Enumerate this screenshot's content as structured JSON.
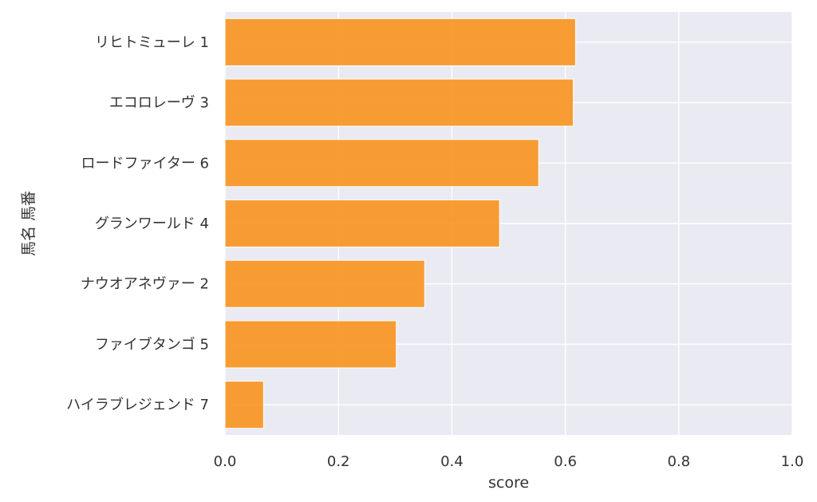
{
  "chart_data": {
    "type": "bar",
    "orientation": "horizontal",
    "categories": [
      "リヒトミューレ 1",
      "エコロレーヴ 3",
      "ロードファイター 6",
      "グランワールド 4",
      "ナウオアネヴァー 2",
      "ファイブタンゴ 5",
      "ハイラブレジェンド 7"
    ],
    "values": [
      0.618,
      0.614,
      0.553,
      0.484,
      0.352,
      0.302,
      0.068
    ],
    "xlabel": "score",
    "ylabel": "馬名 馬番",
    "xlim": [
      0.0,
      1.0
    ],
    "xticks": [
      "0.0",
      "0.2",
      "0.4",
      "0.6",
      "0.8",
      "1.0"
    ],
    "grid": true,
    "bar_color": "#f7931e",
    "background_color": "#eaeaf2",
    "grid_color": "#ffffff"
  }
}
